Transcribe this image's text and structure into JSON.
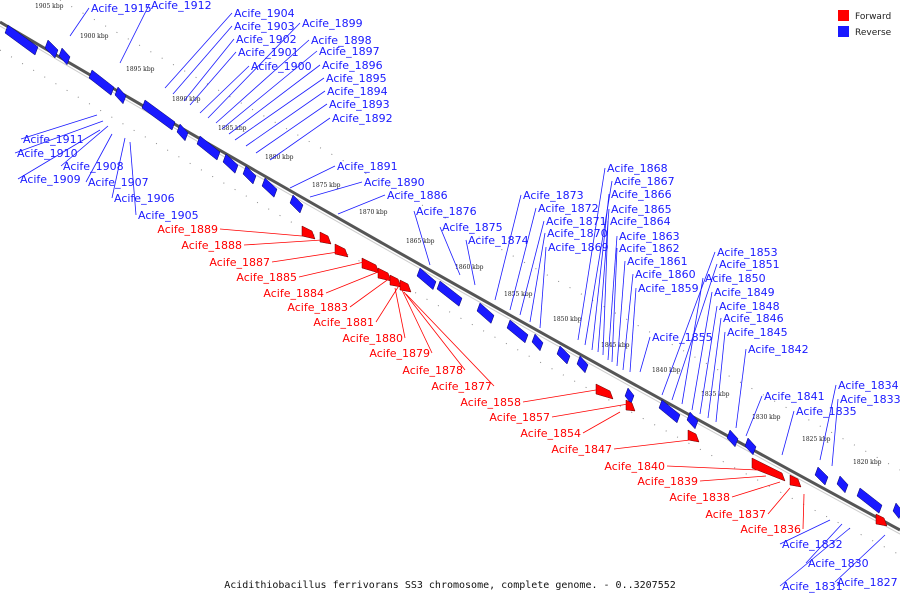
{
  "colors": {
    "forward": "#ff0000",
    "reverse": "#1a1aff",
    "axis": "#555555"
  },
  "caption": "Acidithiobacillus ferrivorans SS3 chromosome, complete genome. - 0..3207552",
  "legend": [
    {
      "label": "Forward",
      "color": "#ff0000",
      "icon": "red-square-icon"
    },
    {
      "label": "Reverse",
      "color": "#1a1aff",
      "icon": "blue-square-icon"
    }
  ],
  "axis": {
    "ticks": [
      "1905 kbp",
      "1900 kbp",
      "1895 kbp",
      "1890 kbp",
      "1885 kbp",
      "1880 kbp",
      "1875 kbp",
      "1870 kbp",
      "1865 kbp",
      "1860 kbp",
      "1855 kbp",
      "1850 kbp",
      "1845 kbp",
      "1840 kbp",
      "1835 kbp",
      "1830 kbp",
      "1825 kbp",
      "1820 kbp"
    ]
  },
  "reverse_genes": [
    "Acife_1915",
    "Acife_1912",
    "Acife_1904",
    "Acife_1903",
    "Acife_1902",
    "Acife_1901",
    "Acife_1900",
    "Acife_1899",
    "Acife_1898",
    "Acife_1897",
    "Acife_1896",
    "Acife_1895",
    "Acife_1894",
    "Acife_1893",
    "Acife_1892",
    "Acife_1911",
    "Acife_1910",
    "Acife_1908",
    "Acife_1909",
    "Acife_1907",
    "Acife_1906",
    "Acife_1905",
    "Acife_1891",
    "Acife_1890",
    "Acife_1886",
    "Acife_1876",
    "Acife_1875",
    "Acife_1874",
    "Acife_1873",
    "Acife_1872",
    "Acife_1871",
    "Acife_1870",
    "Acife_1869",
    "Acife_1868",
    "Acife_1867",
    "Acife_1866",
    "Acife_1865",
    "Acife_1864",
    "Acife_1863",
    "Acife_1862",
    "Acife_1861",
    "Acife_1860",
    "Acife_1859",
    "Acife_1855",
    "Acife_1853",
    "Acife_1851",
    "Acife_1850",
    "Acife_1849",
    "Acife_1848",
    "Acife_1846",
    "Acife_1845",
    "Acife_1842",
    "Acife_1841",
    "Acife_1835",
    "Acife_1834",
    "Acife_1833",
    "Acife_1832",
    "Acife_1830",
    "Acife_1831",
    "Acife_1827"
  ],
  "forward_genes": [
    "Acife_1889",
    "Acife_1888",
    "Acife_1887",
    "Acife_1885",
    "Acife_1884",
    "Acife_1883",
    "Acife_1881",
    "Acife_1880",
    "Acife_1879",
    "Acife_1878",
    "Acife_1877",
    "Acife_1858",
    "Acife_1857",
    "Acife_1854",
    "Acife_1847",
    "Acife_1840",
    "Acife_1839",
    "Acife_1838",
    "Acife_1837",
    "Acife_1836"
  ]
}
